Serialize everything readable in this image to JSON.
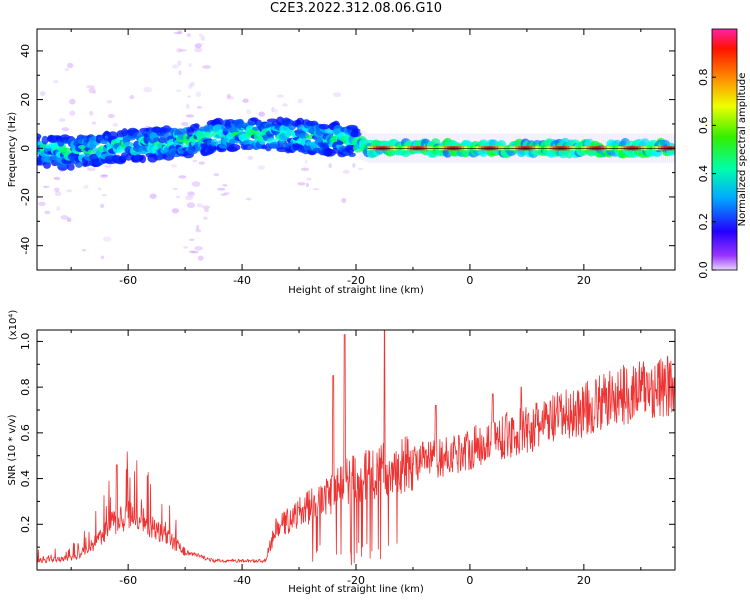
{
  "title": "C2E3.2022.312.08.06.G10",
  "chart_data": [
    {
      "type": "heatmap",
      "xlabel": "Height of straight line (km)",
      "ylabel": "Frequency (Hz)",
      "xlim": [
        -76,
        36
      ],
      "ylim": [
        -50,
        49
      ],
      "xticks": [
        -60,
        -40,
        -20,
        0,
        20
      ],
      "yticks": [
        40,
        20,
        0,
        -20,
        -40
      ],
      "colorbar": {
        "label": "Normalized spectral amplitude",
        "range": [
          0,
          1
        ],
        "ticks": [
          "0.0",
          "0.2",
          "0.4",
          "0.6",
          "0.8"
        ],
        "tick_values": [
          0.0,
          0.2,
          0.4,
          0.6,
          0.8
        ]
      },
      "ridge": {
        "x": [
          -76,
          -70,
          -60,
          -50,
          -40,
          -30,
          -21,
          -18,
          -10,
          0,
          10,
          20,
          30,
          36
        ],
        "y": [
          -1,
          -2,
          1,
          3,
          6,
          5,
          3,
          0,
          0,
          0,
          0,
          0,
          0,
          0
        ]
      }
    },
    {
      "type": "line",
      "xlabel": "Height of straight line (km)",
      "ylabel": "SNR (10 * v/v)",
      "yunit": "(x10⁴)",
      "xlim": [
        -76,
        36
      ],
      "ylim": [
        0.0,
        1.05
      ],
      "xticks": [
        -60,
        -40,
        -20,
        0,
        20
      ],
      "yticks": [
        "0.2",
        "0.4",
        "0.6",
        "0.8",
        "1.0"
      ],
      "ytick_values": [
        0.2,
        0.4,
        0.6,
        0.8,
        1.0
      ],
      "line_color": "#ee3333",
      "envelope": {
        "x": [
          -76,
          -70,
          -67,
          -63,
          -60,
          -57,
          -53,
          -50,
          -45,
          -40,
          -36,
          -34,
          -30,
          -25,
          -22,
          -20,
          -15,
          -10,
          -5,
          0,
          5,
          10,
          15,
          20,
          25,
          30,
          36
        ],
        "y": [
          0.04,
          0.05,
          0.09,
          0.2,
          0.24,
          0.21,
          0.14,
          0.08,
          0.04,
          0.04,
          0.04,
          0.18,
          0.25,
          0.32,
          0.38,
          0.4,
          0.44,
          0.47,
          0.49,
          0.53,
          0.58,
          0.61,
          0.66,
          0.7,
          0.75,
          0.79,
          0.8
        ]
      },
      "peaks": [
        {
          "x": -62,
          "y": 0.46
        },
        {
          "x": -24,
          "y": 0.85
        },
        {
          "x": -22,
          "y": 1.03
        },
        {
          "x": -15,
          "y": 1.05
        },
        {
          "x": -6,
          "y": 0.72
        },
        {
          "x": 4,
          "y": 0.77
        },
        {
          "x": 9,
          "y": 0.8
        }
      ]
    }
  ]
}
